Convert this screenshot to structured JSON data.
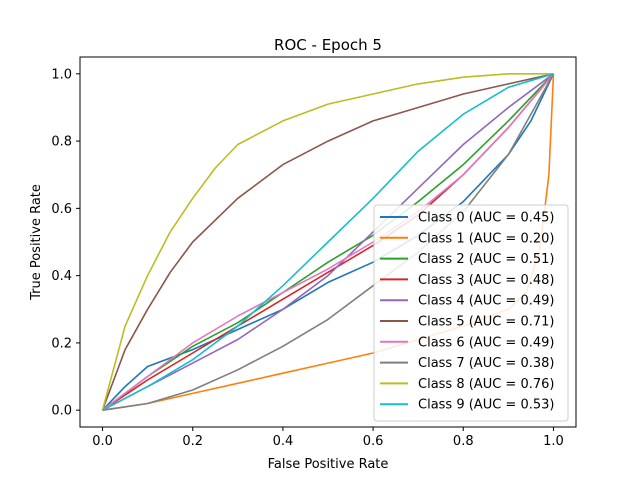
{
  "chart_data": {
    "type": "line",
    "title": "ROC - Epoch 5",
    "xlabel": "False Positive Rate",
    "ylabel": "True Positive Rate",
    "xlim": [
      -0.05,
      1.05
    ],
    "ylim": [
      -0.05,
      1.05
    ],
    "xticks": [
      "0.0",
      "0.2",
      "0.4",
      "0.6",
      "0.8",
      "1.0"
    ],
    "yticks": [
      "0.0",
      "0.2",
      "0.4",
      "0.6",
      "0.8",
      "1.0"
    ],
    "grid": false,
    "legend_position": "lower-right",
    "series": [
      {
        "name": "Class 0 (AUC = 0.45)",
        "color": "#1f77b4",
        "points": [
          [
            0,
            0
          ],
          [
            0.05,
            0.07
          ],
          [
            0.1,
            0.13
          ],
          [
            0.2,
            0.18
          ],
          [
            0.3,
            0.24
          ],
          [
            0.4,
            0.3
          ],
          [
            0.5,
            0.38
          ],
          [
            0.6,
            0.44
          ],
          [
            0.7,
            0.52
          ],
          [
            0.8,
            0.62
          ],
          [
            0.9,
            0.76
          ],
          [
            0.95,
            0.86
          ],
          [
            1,
            1
          ]
        ]
      },
      {
        "name": "Class 1 (AUC = 0.20)",
        "color": "#ff7f0e",
        "points": [
          [
            0,
            0
          ],
          [
            0.1,
            0.02
          ],
          [
            0.2,
            0.05
          ],
          [
            0.3,
            0.08
          ],
          [
            0.4,
            0.11
          ],
          [
            0.5,
            0.14
          ],
          [
            0.6,
            0.17
          ],
          [
            0.7,
            0.21
          ],
          [
            0.8,
            0.25
          ],
          [
            0.9,
            0.3
          ],
          [
            0.94,
            0.35
          ],
          [
            0.97,
            0.48
          ],
          [
            0.99,
            0.7
          ],
          [
            1,
            1
          ]
        ]
      },
      {
        "name": "Class 2 (AUC = 0.51)",
        "color": "#2ca02c",
        "points": [
          [
            0,
            0
          ],
          [
            0.1,
            0.1
          ],
          [
            0.2,
            0.19
          ],
          [
            0.3,
            0.26
          ],
          [
            0.4,
            0.35
          ],
          [
            0.5,
            0.44
          ],
          [
            0.6,
            0.52
          ],
          [
            0.7,
            0.62
          ],
          [
            0.8,
            0.73
          ],
          [
            0.9,
            0.86
          ],
          [
            1,
            1
          ]
        ]
      },
      {
        "name": "Class 3 (AUC = 0.48)",
        "color": "#d62728",
        "points": [
          [
            0,
            0
          ],
          [
            0.1,
            0.09
          ],
          [
            0.2,
            0.17
          ],
          [
            0.3,
            0.25
          ],
          [
            0.4,
            0.33
          ],
          [
            0.5,
            0.41
          ],
          [
            0.6,
            0.49
          ],
          [
            0.7,
            0.58
          ],
          [
            0.8,
            0.7
          ],
          [
            0.9,
            0.84
          ],
          [
            1,
            1
          ]
        ]
      },
      {
        "name": "Class 4 (AUC = 0.49)",
        "color": "#9467bd",
        "points": [
          [
            0,
            0
          ],
          [
            0.1,
            0.07
          ],
          [
            0.2,
            0.14
          ],
          [
            0.3,
            0.21
          ],
          [
            0.4,
            0.3
          ],
          [
            0.5,
            0.4
          ],
          [
            0.6,
            0.53
          ],
          [
            0.7,
            0.66
          ],
          [
            0.8,
            0.79
          ],
          [
            0.9,
            0.9
          ],
          [
            1,
            1
          ]
        ]
      },
      {
        "name": "Class 5 (AUC = 0.71)",
        "color": "#8c564b",
        "points": [
          [
            0,
            0
          ],
          [
            0.05,
            0.18
          ],
          [
            0.1,
            0.3
          ],
          [
            0.15,
            0.41
          ],
          [
            0.2,
            0.5
          ],
          [
            0.3,
            0.63
          ],
          [
            0.4,
            0.73
          ],
          [
            0.5,
            0.8
          ],
          [
            0.6,
            0.86
          ],
          [
            0.7,
            0.9
          ],
          [
            0.8,
            0.94
          ],
          [
            0.9,
            0.97
          ],
          [
            1,
            1
          ]
        ]
      },
      {
        "name": "Class 6 (AUC = 0.49)",
        "color": "#e377c2",
        "points": [
          [
            0,
            0
          ],
          [
            0.1,
            0.1
          ],
          [
            0.2,
            0.2
          ],
          [
            0.3,
            0.28
          ],
          [
            0.4,
            0.35
          ],
          [
            0.5,
            0.42
          ],
          [
            0.6,
            0.5
          ],
          [
            0.7,
            0.59
          ],
          [
            0.8,
            0.7
          ],
          [
            0.9,
            0.84
          ],
          [
            1,
            1
          ]
        ]
      },
      {
        "name": "Class 7 (AUC = 0.38)",
        "color": "#7f7f7f",
        "points": [
          [
            0,
            0
          ],
          [
            0.1,
            0.02
          ],
          [
            0.2,
            0.06
          ],
          [
            0.3,
            0.12
          ],
          [
            0.4,
            0.19
          ],
          [
            0.5,
            0.27
          ],
          [
            0.6,
            0.37
          ],
          [
            0.7,
            0.47
          ],
          [
            0.8,
            0.59
          ],
          [
            0.9,
            0.76
          ],
          [
            1,
            1
          ]
        ]
      },
      {
        "name": "Class 8 (AUC = 0.76)",
        "color": "#bcbd22",
        "points": [
          [
            0,
            0
          ],
          [
            0.05,
            0.25
          ],
          [
            0.1,
            0.4
          ],
          [
            0.15,
            0.53
          ],
          [
            0.2,
            0.63
          ],
          [
            0.25,
            0.72
          ],
          [
            0.3,
            0.79
          ],
          [
            0.4,
            0.86
          ],
          [
            0.5,
            0.91
          ],
          [
            0.6,
            0.94
          ],
          [
            0.7,
            0.97
          ],
          [
            0.8,
            0.99
          ],
          [
            0.9,
            1.0
          ],
          [
            1,
            1
          ]
        ]
      },
      {
        "name": "Class 9 (AUC = 0.53)",
        "color": "#17becf",
        "points": [
          [
            0,
            0
          ],
          [
            0.1,
            0.07
          ],
          [
            0.2,
            0.15
          ],
          [
            0.3,
            0.25
          ],
          [
            0.4,
            0.37
          ],
          [
            0.5,
            0.5
          ],
          [
            0.6,
            0.63
          ],
          [
            0.7,
            0.77
          ],
          [
            0.8,
            0.88
          ],
          [
            0.9,
            0.96
          ],
          [
            1,
            1
          ]
        ]
      }
    ]
  }
}
